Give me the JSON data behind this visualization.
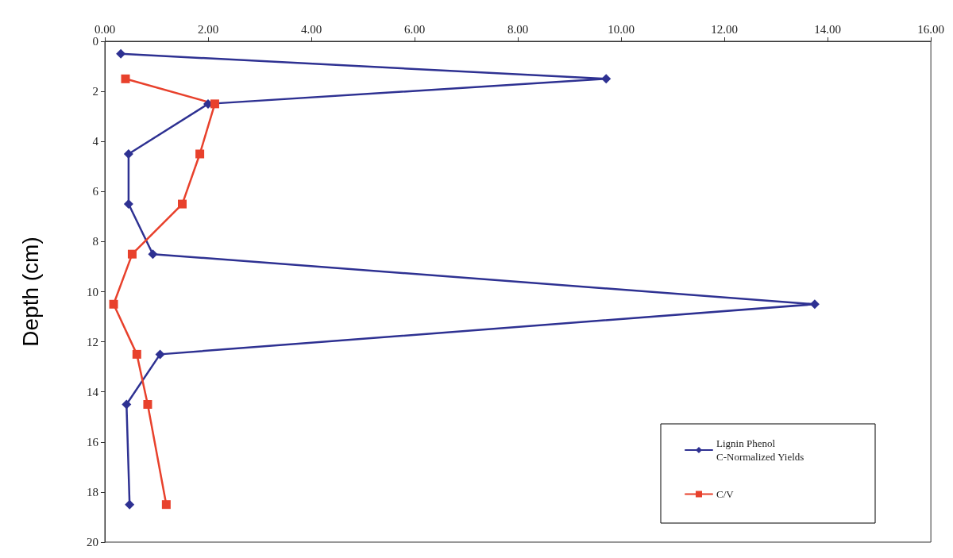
{
  "chart_data": {
    "type": "line",
    "ylabel": "Depth (cm)",
    "series": [
      {
        "name": "Lignin Phenol C-Normalized Yields",
        "color": "#2e3192",
        "marker": "diamond",
        "x": [
          0.31,
          9.71,
          2.0,
          0.46,
          0.46,
          0.93,
          13.75,
          1.07,
          0.42,
          0.48
        ],
        "values": [
          0.5,
          1.5,
          2.5,
          4.5,
          6.5,
          8.5,
          10.5,
          12.5,
          14.5,
          18.5
        ]
      },
      {
        "name": "C/V",
        "color": "#e8412c",
        "marker": "square",
        "x": [
          0.4,
          2.13,
          1.84,
          1.5,
          0.53,
          0.17,
          0.62,
          0.83,
          1.19
        ],
        "values": [
          1.5,
          2.5,
          4.5,
          6.5,
          8.5,
          10.5,
          12.5,
          14.5,
          18.5
        ]
      }
    ],
    "xlim": [
      0,
      16
    ],
    "xticks": [
      {
        "value": 0,
        "label": "0.00"
      },
      {
        "value": 2,
        "label": "2.00"
      },
      {
        "value": 4,
        "label": "4.00"
      },
      {
        "value": 6,
        "label": "6.00"
      },
      {
        "value": 8,
        "label": "8.00"
      },
      {
        "value": 10,
        "label": "10.00"
      },
      {
        "value": 12,
        "label": "12.00"
      },
      {
        "value": 14,
        "label": "14.00"
      },
      {
        "value": 16,
        "label": "16.00"
      }
    ],
    "ylim": [
      20,
      0
    ],
    "yticks": [
      0,
      2,
      4,
      6,
      8,
      10,
      12,
      14,
      16,
      18,
      20
    ],
    "grid": false,
    "legend": "bottom right",
    "line_style": "solid"
  }
}
